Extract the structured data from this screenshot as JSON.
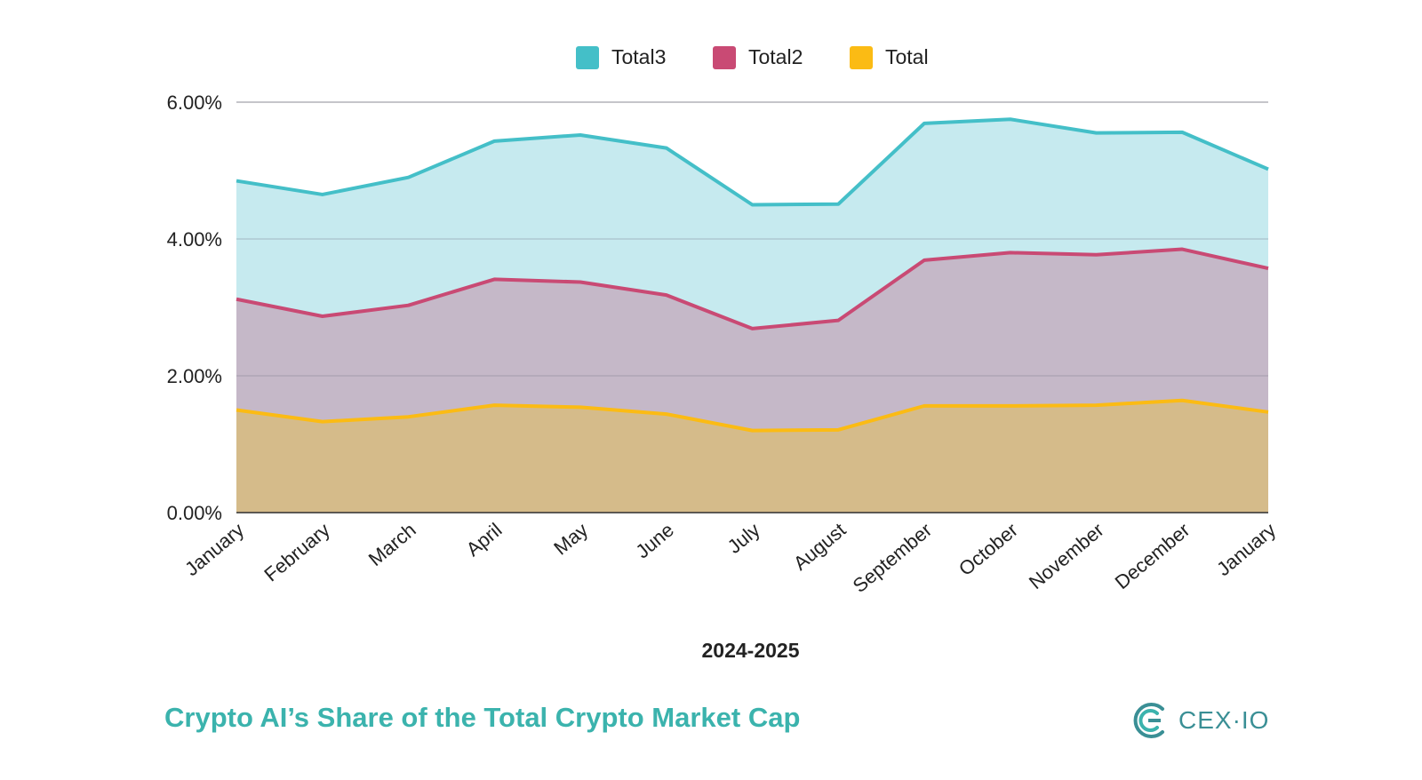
{
  "chart_data": {
    "type": "area",
    "stacked": false,
    "categories": [
      "January",
      "February",
      "March",
      "April",
      "May",
      "June",
      "July",
      "August",
      "September",
      "October",
      "November",
      "December",
      "January"
    ],
    "series": [
      {
        "name": "Total3",
        "color": "#44bfc8",
        "fill": "#c6eaef",
        "values": [
          4.85,
          4.65,
          4.9,
          5.43,
          5.52,
          5.33,
          4.5,
          4.51,
          5.69,
          5.75,
          5.55,
          5.56,
          5.02
        ]
      },
      {
        "name": "Total2",
        "color": "#c94a74",
        "fill": "#c5b8c8",
        "values": [
          3.12,
          2.87,
          3.03,
          3.41,
          3.37,
          3.18,
          2.69,
          2.81,
          3.69,
          3.8,
          3.77,
          3.85,
          3.57
        ]
      },
      {
        "name": "Total",
        "color": "#fbbb14",
        "fill": "#d5bb8a",
        "values": [
          1.5,
          1.33,
          1.4,
          1.57,
          1.54,
          1.44,
          1.2,
          1.21,
          1.56,
          1.56,
          1.57,
          1.64,
          1.47
        ]
      }
    ],
    "legend_order": [
      "Total3",
      "Total2",
      "Total"
    ],
    "legend_position": "top-center",
    "ylim": [
      0,
      6
    ],
    "yticks": [
      "0.00%",
      "2.00%",
      "4.00%",
      "6.00%"
    ],
    "ytick_values": [
      0,
      2,
      4,
      6
    ],
    "xlabel": "2024-2025",
    "ylabel": "",
    "grid": true
  },
  "footer": {
    "title": "Crypto AI’s Share of the Total Crypto Market Cap",
    "brand": "CEX·IO",
    "brand_color": "#3a8f95",
    "title_color": "#3bb3ad"
  }
}
